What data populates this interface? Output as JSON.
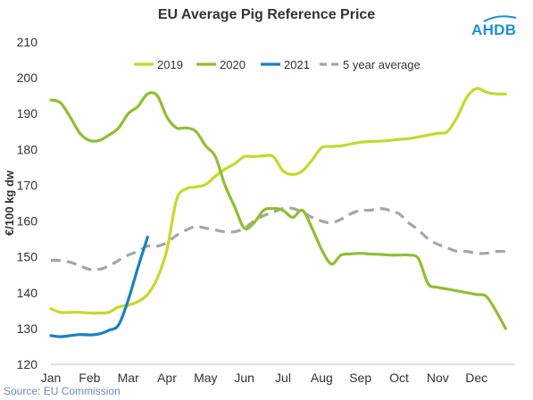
{
  "header": {
    "title": "EU Average  Pig Reference Price",
    "logo_text": "AHDB"
  },
  "footer": {
    "source": "Source: EU Commission"
  },
  "colors": {
    "s2019": "#c8d82a",
    "s2020": "#8fbf32",
    "s2021": "#1b7fc4",
    "avg": "#a6a6a6",
    "logo": "#1f8fd6"
  },
  "chart_data": {
    "type": "line",
    "title": "EU Average  Pig Reference Price",
    "ylabel": "€/100 kg dw",
    "xlabel": "",
    "ylim": [
      120,
      210
    ],
    "yticks": [
      120,
      130,
      140,
      150,
      160,
      170,
      180,
      190,
      200,
      210
    ],
    "xlim": [
      0,
      12
    ],
    "xtick_labels": [
      "Jan",
      "Feb",
      "Mar",
      "Apr",
      "May",
      "Jun",
      "Jul",
      "Aug",
      "Sep",
      "Oct",
      "Nov",
      "Dec"
    ],
    "x_unit": "month",
    "grid": false,
    "legend": "top",
    "series": [
      {
        "name": "2019",
        "color": "#c8d82a",
        "dash": false,
        "x": [
          0,
          0.25,
          0.5,
          0.75,
          1,
          1.25,
          1.5,
          1.75,
          2,
          2.25,
          2.5,
          2.75,
          3,
          3.25,
          3.5,
          3.75,
          4,
          4.25,
          4.5,
          4.75,
          5,
          5.25,
          5.5,
          5.75,
          6,
          6.25,
          6.5,
          6.75,
          7,
          7.25,
          7.5,
          7.75,
          8,
          8.25,
          8.5,
          8.75,
          9,
          9.25,
          9.5,
          9.75,
          10,
          10.25,
          10.5,
          10.75,
          11,
          11.25,
          11.5,
          11.75
        ],
        "y": [
          135.5,
          134.5,
          134.5,
          134.5,
          134.3,
          134.3,
          134.5,
          136,
          136.5,
          137.5,
          139.5,
          144,
          152,
          166,
          169,
          169.5,
          170.2,
          172.5,
          174.5,
          176,
          178,
          178,
          178.2,
          178,
          174,
          173,
          174,
          177,
          180.5,
          180.8,
          181,
          181.5,
          182,
          182.2,
          182.3,
          182.5,
          182.8,
          183,
          183.5,
          184,
          184.5,
          185,
          189,
          194.5,
          197,
          196,
          195.5,
          195.5
        ]
      },
      {
        "name": "2020",
        "color": "#8fbf32",
        "dash": false,
        "x": [
          0,
          0.25,
          0.5,
          0.75,
          1,
          1.25,
          1.5,
          1.75,
          2,
          2.25,
          2.5,
          2.75,
          3,
          3.25,
          3.5,
          3.75,
          4,
          4.25,
          4.5,
          4.75,
          5,
          5.25,
          5.5,
          5.75,
          6,
          6.25,
          6.5,
          6.75,
          7,
          7.25,
          7.5,
          7.75,
          8,
          8.25,
          8.5,
          8.75,
          9,
          9.25,
          9.5,
          9.75,
          10,
          10.25,
          10.5,
          10.75,
          11,
          11.25,
          11.5,
          11.75
        ],
        "y": [
          193.8,
          193,
          189,
          184.5,
          182.5,
          182.5,
          184,
          186,
          190,
          192,
          195.5,
          195,
          189,
          186,
          186,
          185,
          181,
          178,
          170,
          164,
          158,
          159.5,
          163,
          163.5,
          163,
          161,
          163,
          158,
          152,
          148,
          150.5,
          150.8,
          151,
          150.8,
          150.7,
          150.5,
          150.5,
          150.5,
          149.5,
          142.5,
          141.5,
          141,
          140.5,
          140,
          139.5,
          139,
          135,
          130
        ]
      },
      {
        "name": "2021",
        "color": "#1b7fc4",
        "dash": false,
        "x": [
          0,
          0.25,
          0.5,
          0.75,
          1,
          1.25,
          1.5,
          1.75,
          2,
          2.25,
          2.5
        ],
        "y": [
          128,
          127.7,
          128,
          128.3,
          128.2,
          128.5,
          129.5,
          131,
          138,
          147,
          155.5
        ]
      },
      {
        "name": "5 year average",
        "color": "#a6a6a6",
        "dash": true,
        "x": [
          0,
          0.25,
          0.5,
          0.75,
          1,
          1.25,
          1.5,
          1.75,
          2,
          2.25,
          2.5,
          2.75,
          3,
          3.25,
          3.5,
          3.75,
          4,
          4.25,
          4.5,
          4.75,
          5,
          5.25,
          5.5,
          5.75,
          6,
          6.25,
          6.5,
          6.75,
          7,
          7.25,
          7.5,
          7.75,
          8,
          8.25,
          8.5,
          8.75,
          9,
          9.25,
          9.5,
          9.75,
          10,
          10.25,
          10.5,
          10.75,
          11,
          11.25,
          11.5,
          11.75
        ],
        "y": [
          149,
          149,
          148.5,
          147.5,
          146.5,
          146.5,
          147.5,
          149,
          150.5,
          151.5,
          153,
          153,
          154,
          156,
          157.5,
          158.5,
          158,
          157.5,
          157,
          157,
          158,
          160,
          161.5,
          162.5,
          163.5,
          163.5,
          162.5,
          161,
          160,
          159.5,
          160.5,
          162,
          163,
          163,
          163.5,
          163,
          162,
          159.5,
          157.5,
          155,
          153.5,
          152.5,
          151.5,
          151.5,
          151,
          151,
          151.5,
          151.5
        ]
      }
    ]
  }
}
